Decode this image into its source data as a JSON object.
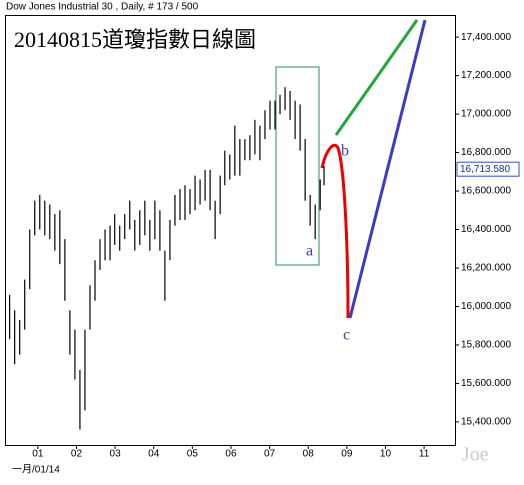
{
  "chart_data": {
    "type": "hilo",
    "title": "Dow Jones Industrial 30 , Daily, # 173 / 500",
    "subtitle": "20140815道瓊指數日線圖",
    "date_label": "一月/01/14",
    "watermark": "Joe",
    "annotations": [
      "a",
      "b",
      "c"
    ],
    "last_price": {
      "value": 16713.58,
      "label": "16,713.580"
    },
    "color": "#000000",
    "x": [
      0.27,
      0.4,
      0.53,
      0.66,
      0.79,
      0.92,
      1.05,
      1.18,
      1.31,
      1.44,
      1.57,
      1.7,
      1.83,
      1.96,
      2.09,
      2.22,
      2.35,
      2.48,
      2.61,
      2.74,
      2.87,
      2.99,
      3.12,
      3.25,
      3.38,
      3.51,
      3.64,
      3.77,
      3.9,
      4.03,
      4.16,
      4.29,
      4.42,
      4.55,
      4.68,
      4.81,
      4.94,
      5.07,
      5.2,
      5.33,
      5.46,
      5.59,
      5.72,
      5.84,
      5.97,
      6.1,
      6.23,
      6.36,
      6.49,
      6.62,
      6.75,
      6.88,
      7.01,
      7.14,
      7.27,
      7.4,
      7.53,
      7.66,
      7.79,
      7.92,
      8.05,
      8.18,
      8.31,
      8.41
    ],
    "high": [
      16060,
      15980,
      15930,
      16140,
      16400,
      16550,
      16580,
      16550,
      16530,
      16480,
      16500,
      16350,
      15980,
      15880,
      15670,
      15880,
      16110,
      16240,
      16350,
      16400,
      16420,
      16480,
      16420,
      16480,
      16550,
      16450,
      16500,
      16550,
      16450,
      16550,
      16500,
      16290,
      16450,
      16580,
      16610,
      16630,
      16610,
      16680,
      16660,
      16710,
      16710,
      16550,
      16680,
      16810,
      16790,
      16940,
      16870,
      16870,
      16890,
      16970,
      16940,
      17020,
      17070,
      17070,
      17100,
      17140,
      17120,
      17070,
      17050,
      16870,
      16580,
      16530,
      16660,
      16730
    ],
    "low": [
      15830,
      15700,
      15750,
      15880,
      16090,
      16370,
      16400,
      16370,
      16350,
      16290,
      16220,
      16030,
      15750,
      15620,
      15360,
      15460,
      15880,
      16030,
      16190,
      16240,
      16240,
      16320,
      16290,
      16350,
      16400,
      16290,
      16320,
      16370,
      16290,
      16350,
      16290,
      16030,
      16240,
      16420,
      16450,
      16450,
      16480,
      16500,
      16530,
      16550,
      16500,
      16350,
      16480,
      16630,
      16660,
      16680,
      16680,
      16760,
      16760,
      16790,
      16760,
      16870,
      16920,
      16920,
      17000,
      17020,
      16970,
      16870,
      16810,
      16550,
      16420,
      16350,
      16500,
      16630
    ],
    "xlim": [
      0.15,
      11.8
    ],
    "xticks": [
      {
        "value": 1,
        "label": "01"
      },
      {
        "value": 2,
        "label": "02"
      },
      {
        "value": 3,
        "label": "03"
      },
      {
        "value": 4,
        "label": "04"
      },
      {
        "value": 5,
        "label": "05"
      },
      {
        "value": 6,
        "label": "06"
      },
      {
        "value": 7,
        "label": "07"
      },
      {
        "value": 8,
        "label": "08"
      },
      {
        "value": 9,
        "label": "09"
      },
      {
        "value": 10,
        "label": "10"
      },
      {
        "value": 11,
        "label": "11"
      }
    ],
    "ylim": [
      15280,
      17515
    ],
    "yticks": [
      {
        "value": 15400,
        "label": "15,400.000"
      },
      {
        "value": 15600,
        "label": "15,600.000"
      },
      {
        "value": 15800,
        "label": "15,800.000"
      },
      {
        "value": 16000,
        "label": "16,000.000"
      },
      {
        "value": 16200,
        "label": "16,200.000"
      },
      {
        "value": 16400,
        "label": "16,400.000"
      },
      {
        "value": 16600,
        "label": "16,600.000"
      },
      {
        "value": 16800,
        "label": "16,800.000"
      },
      {
        "value": 17000,
        "label": "17,000.000"
      },
      {
        "value": 17200,
        "label": "17,200.000"
      },
      {
        "value": 17400,
        "label": "17,400.000"
      }
    ]
  }
}
